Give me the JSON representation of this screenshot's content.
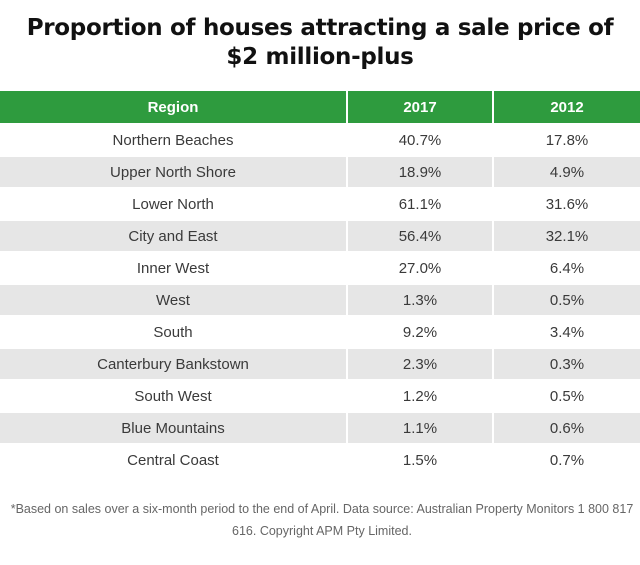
{
  "title": "Proportion of houses attracting a sale price of $2 million-plus",
  "colors": {
    "header_bg": "#2e9b3e",
    "header_text": "#ffffff",
    "stripe": "#e6e6e6"
  },
  "chart_data": {
    "type": "table",
    "title": "Proportion of houses attracting a sale price of $2 million-plus",
    "columns": [
      "Region",
      "2017",
      "2012"
    ],
    "rows": [
      [
        "Northern Beaches",
        "40.7%",
        "17.8%"
      ],
      [
        "Upper North Shore",
        "18.9%",
        "4.9%"
      ],
      [
        "Lower North",
        "61.1%",
        "31.6%"
      ],
      [
        "City and East",
        "56.4%",
        "32.1%"
      ],
      [
        "Inner West",
        "27.0%",
        "6.4%"
      ],
      [
        "West",
        "1.3%",
        "0.5%"
      ],
      [
        "South",
        "9.2%",
        "3.4%"
      ],
      [
        "Canterbury Bankstown",
        "2.3%",
        "0.3%"
      ],
      [
        "South West",
        "1.2%",
        "0.5%"
      ],
      [
        "Blue Mountains",
        "1.1%",
        "0.6%"
      ],
      [
        "Central Coast",
        "1.5%",
        "0.7%"
      ]
    ]
  },
  "footnote": "*Based on sales over a six-month period to the end of April. Data source: Australian Property Monitors 1 800 817 616. Copyright APM Pty Limited."
}
